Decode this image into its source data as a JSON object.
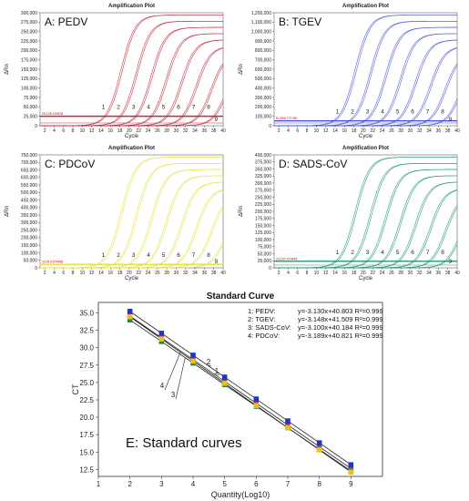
{
  "amplification_plots": [
    {
      "id": "pedv",
      "panel_label": "A: PEDV",
      "plot_title": "Amplification Plot",
      "xlabel": "Cycle",
      "ylabel": "ΔRn",
      "color": "#c8283c",
      "y_ticks": [
        "0",
        "25,000",
        "50,000",
        "75,000",
        "100,000",
        "125,000",
        "150,000",
        "175,000",
        "200,000",
        "225,000",
        "250,000",
        "275,000",
        "300,000"
      ],
      "threshold_label": "25,105.199439",
      "threshold_value": 25105,
      "ymax": 300000,
      "curve_labels": [
        "1",
        "2",
        "3",
        "4",
        "5",
        "6",
        "7",
        "8",
        "9"
      ]
    },
    {
      "id": "tgev",
      "panel_label": "B: TGEV",
      "plot_title": "Amplification Plot",
      "xlabel": "Cycle",
      "ylabel": "ΔRn",
      "color": "#4a55e0",
      "y_ticks": [
        "0",
        "100,000",
        "200,000",
        "300,000",
        "400,000",
        "500,000",
        "600,000",
        "700,000",
        "800,000",
        "900,000",
        "1,000,000",
        "1,100,000",
        "1,200,000"
      ],
      "threshold_label": "51,556.771780",
      "threshold_value": 51556,
      "ymax": 1200000,
      "curve_labels": [
        "1",
        "2",
        "3",
        "4",
        "5",
        "6",
        "7",
        "8",
        "9"
      ]
    },
    {
      "id": "pdcov",
      "panel_label": "C: PDCoV",
      "plot_title": "Amplification Plot",
      "xlabel": "Cycle",
      "ylabel": "ΔRn",
      "color": "#e8e040",
      "y_ticks": [
        "0",
        "50,000",
        "100,000",
        "150,000",
        "200,000",
        "250,000",
        "300,000",
        "350,000",
        "400,000",
        "450,000",
        "500,000",
        "550,000",
        "600,000",
        "650,000",
        "700,000",
        "750,000"
      ],
      "threshold_label": "23,013.674485",
      "threshold_value": 23013,
      "ymax": 750000,
      "curve_labels": [
        "1",
        "2",
        "3",
        "4",
        "5",
        "6",
        "7",
        "8",
        "9"
      ]
    },
    {
      "id": "sadscov",
      "panel_label": "D: SADS-CoV",
      "plot_title": "Amplification Plot",
      "xlabel": "Cycle",
      "ylabel": "ΔRn",
      "color": "#1f9a6c",
      "y_ticks": [
        "0",
        "25,000",
        "50,000",
        "75,000",
        "100,000",
        "125,000",
        "150,000",
        "175,000",
        "200,000",
        "225,000",
        "250,000",
        "275,000",
        "300,000",
        "325,000",
        "350,000",
        "375,000",
        "400,000"
      ],
      "threshold_label": "23,107.470445",
      "threshold_value": 23107,
      "ymax": 400000,
      "curve_labels": [
        "1",
        "2",
        "3",
        "4",
        "5",
        "6",
        "7",
        "8",
        "9"
      ]
    }
  ],
  "amp_x_ticks": [
    "2",
    "4",
    "6",
    "8",
    "10",
    "12",
    "14",
    "16",
    "18",
    "20",
    "22",
    "24",
    "26",
    "28",
    "30",
    "32",
    "34",
    "36",
    "38",
    "40"
  ],
  "chart_data": {
    "type": "scatter",
    "title": "Standard Curve",
    "xlabel": "Quantity(Log10)",
    "ylabel": "CT",
    "xlim": [
      1,
      10
    ],
    "ylim": [
      11.5,
      36.5
    ],
    "x_ticks": [
      "1",
      "2",
      "3",
      "4",
      "5",
      "6",
      "7",
      "8",
      "9"
    ],
    "y_ticks": [
      "12.5",
      "15.0",
      "17.5",
      "20.0",
      "22.5",
      "25.0",
      "27.5",
      "30.0",
      "32.5",
      "35.0"
    ],
    "series": [
      {
        "label": "1: PEDV:",
        "equation": "y=-3.130x+40.803",
        "r2": "R²=0.999",
        "slope": -3.13,
        "intercept": 40.803,
        "color": "#e0281e",
        "curve_label": "1"
      },
      {
        "label": "2: TGEV:",
        "equation": "y=-3.148x+41.509",
        "r2": "R²=0.999",
        "slope": -3.148,
        "intercept": 41.509,
        "color": "#2233cc",
        "curve_label": "2"
      },
      {
        "label": "3: SADS-CoV:",
        "equation": "y=-3.100x+40.184",
        "r2": "R²=0.999",
        "slope": -3.1,
        "intercept": 40.184,
        "color": "#1f8a3a",
        "curve_label": "3"
      },
      {
        "label": "4: PDCoV:",
        "equation": "y=-3.189x+40.821",
        "r2": "R²=0.999",
        "slope": -3.189,
        "intercept": 40.821,
        "color": "#e8c020",
        "curve_label": "4"
      }
    ],
    "x_points": [
      2,
      3,
      4,
      5,
      6,
      7,
      8,
      9
    ],
    "panel_label": "E: Standard curves"
  }
}
